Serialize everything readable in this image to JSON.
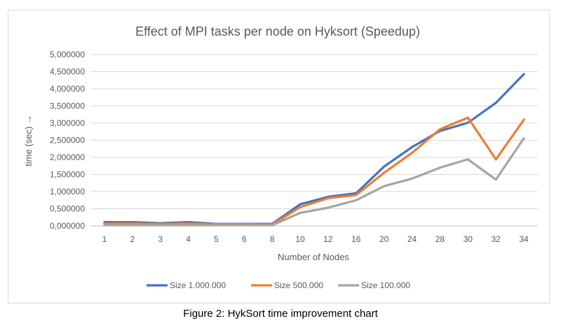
{
  "caption": "Figure 2: HykSort time improvement chart",
  "chart_data": {
    "type": "line",
    "title": "Effect of MPI tasks per node on Hyksort (Speedup)",
    "xlabel": "Number of Nodes",
    "ylabel": "time (sec) →",
    "categories": [
      "1",
      "2",
      "3",
      "4",
      "5",
      "6",
      "8",
      "10",
      "12",
      "16",
      "20",
      "24",
      "28",
      "30",
      "32",
      "34"
    ],
    "ylim": [
      0,
      5
    ],
    "yticks": [
      "0,000000",
      "0,500000",
      "1,000000",
      "1,500000",
      "2,000000",
      "2,500000",
      "3,000000",
      "3,500000",
      "4,000000",
      "4,500000",
      "5,000000"
    ],
    "grid": true,
    "legend_position": "bottom",
    "series": [
      {
        "name": "Size 1.000.000",
        "color": "#4472c4",
        "values": [
          0.11,
          0.11,
          0.08,
          0.11,
          0.06,
          0.06,
          0.06,
          0.63,
          0.85,
          0.95,
          1.73,
          2.3,
          2.77,
          3.01,
          3.59,
          4.43
        ]
      },
      {
        "name": "Size 500.000",
        "color": "#ed7d31",
        "values": [
          0.07,
          0.07,
          0.06,
          0.07,
          0.05,
          0.05,
          0.04,
          0.55,
          0.81,
          0.9,
          1.55,
          2.13,
          2.82,
          3.16,
          1.94,
          3.1
        ]
      },
      {
        "name": "Size 100.000",
        "color": "#a5a5a5",
        "values": [
          0.02,
          0.02,
          0.02,
          0.02,
          0.02,
          0.02,
          0.02,
          0.38,
          0.53,
          0.75,
          1.16,
          1.38,
          1.7,
          1.94,
          1.35,
          2.56
        ]
      }
    ]
  }
}
